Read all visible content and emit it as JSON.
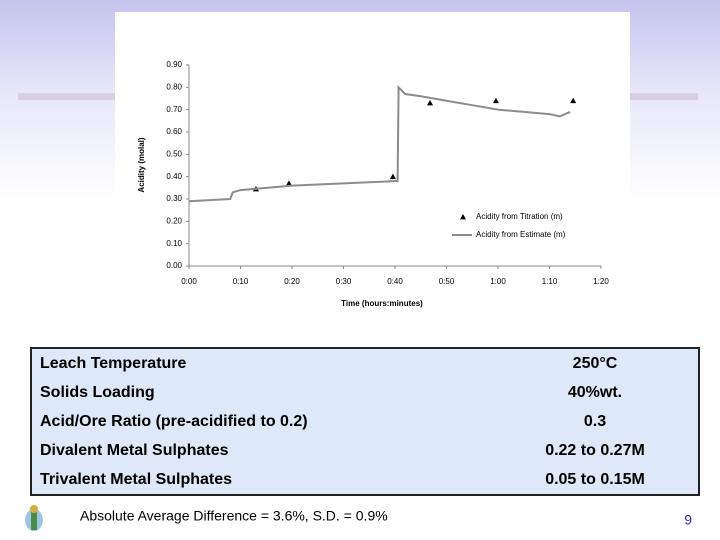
{
  "chart_data": {
    "type": "line",
    "x_label": "Time (hours:minutes)",
    "y_label": "Acidity (molal)",
    "xlim": [
      0,
      80
    ],
    "xticks": [
      {
        "value": 0,
        "label": "0:00"
      },
      {
        "value": 10,
        "label": "0:10"
      },
      {
        "value": 20,
        "label": "0:20"
      },
      {
        "value": 30,
        "label": "0:30"
      },
      {
        "value": 40,
        "label": "0:40"
      },
      {
        "value": 50,
        "label": "0:50"
      },
      {
        "value": 60,
        "label": "1:00"
      },
      {
        "value": 70,
        "label": "1:10"
      },
      {
        "value": 80,
        "label": "1:20"
      }
    ],
    "ylim": [
      0,
      0.9
    ],
    "yticks": [
      {
        "value": 0,
        "label": "0.00"
      },
      {
        "value": 0.1,
        "label": "0.10"
      },
      {
        "value": 0.2,
        "label": "0.20"
      },
      {
        "value": 0.3,
        "label": "0.30"
      },
      {
        "value": 0.4,
        "label": "0.40"
      },
      {
        "value": 0.5,
        "label": "0.50"
      },
      {
        "value": 0.6,
        "label": "0.60"
      },
      {
        "value": 0.7,
        "label": "0.70"
      },
      {
        "value": 0.8,
        "label": "0.80"
      },
      {
        "value": 0.9,
        "label": "0.90"
      }
    ],
    "legend": "right",
    "series": [
      {
        "name": "Acidity from Titration (m)",
        "color": "#000000",
        "marker": "triangle",
        "x": [
          13,
          19.4,
          39.6,
          46.8,
          59.6,
          74.6
        ],
        "values": [
          0.345,
          0.37,
          0.4,
          0.73,
          0.74,
          0.74
        ]
      },
      {
        "name": "Acidity from Estimate (m)",
        "color": "#8c8c8c",
        "x": [
          0,
          4,
          8,
          8.5,
          10,
          15,
          20,
          25,
          30,
          35,
          40,
          40.5,
          40.7,
          42,
          45,
          50,
          55,
          60,
          65,
          70,
          72,
          74
        ],
        "values": [
          0.29,
          0.295,
          0.3,
          0.33,
          0.34,
          0.35,
          0.36,
          0.365,
          0.37,
          0.375,
          0.38,
          0.38,
          0.8,
          0.77,
          0.76,
          0.74,
          0.72,
          0.7,
          0.69,
          0.68,
          0.67,
          0.69
        ]
      }
    ]
  },
  "table": {
    "rows": [
      [
        "Leach Temperature",
        "250°C"
      ],
      [
        "Solids Loading",
        "40%wt."
      ],
      [
        "Acid/Ore Ratio (pre-acidified to 0.2)",
        "0.3"
      ],
      [
        "Divalent Metal Sulphates",
        "0.22 to 0.27M"
      ],
      [
        "Trivalent Metal Sulphates",
        "0.05 to 0.15M"
      ]
    ]
  },
  "footer": {
    "note": "Absolute Average Difference = 3.6%, S.D. = 0.9%",
    "page_number": "9"
  }
}
